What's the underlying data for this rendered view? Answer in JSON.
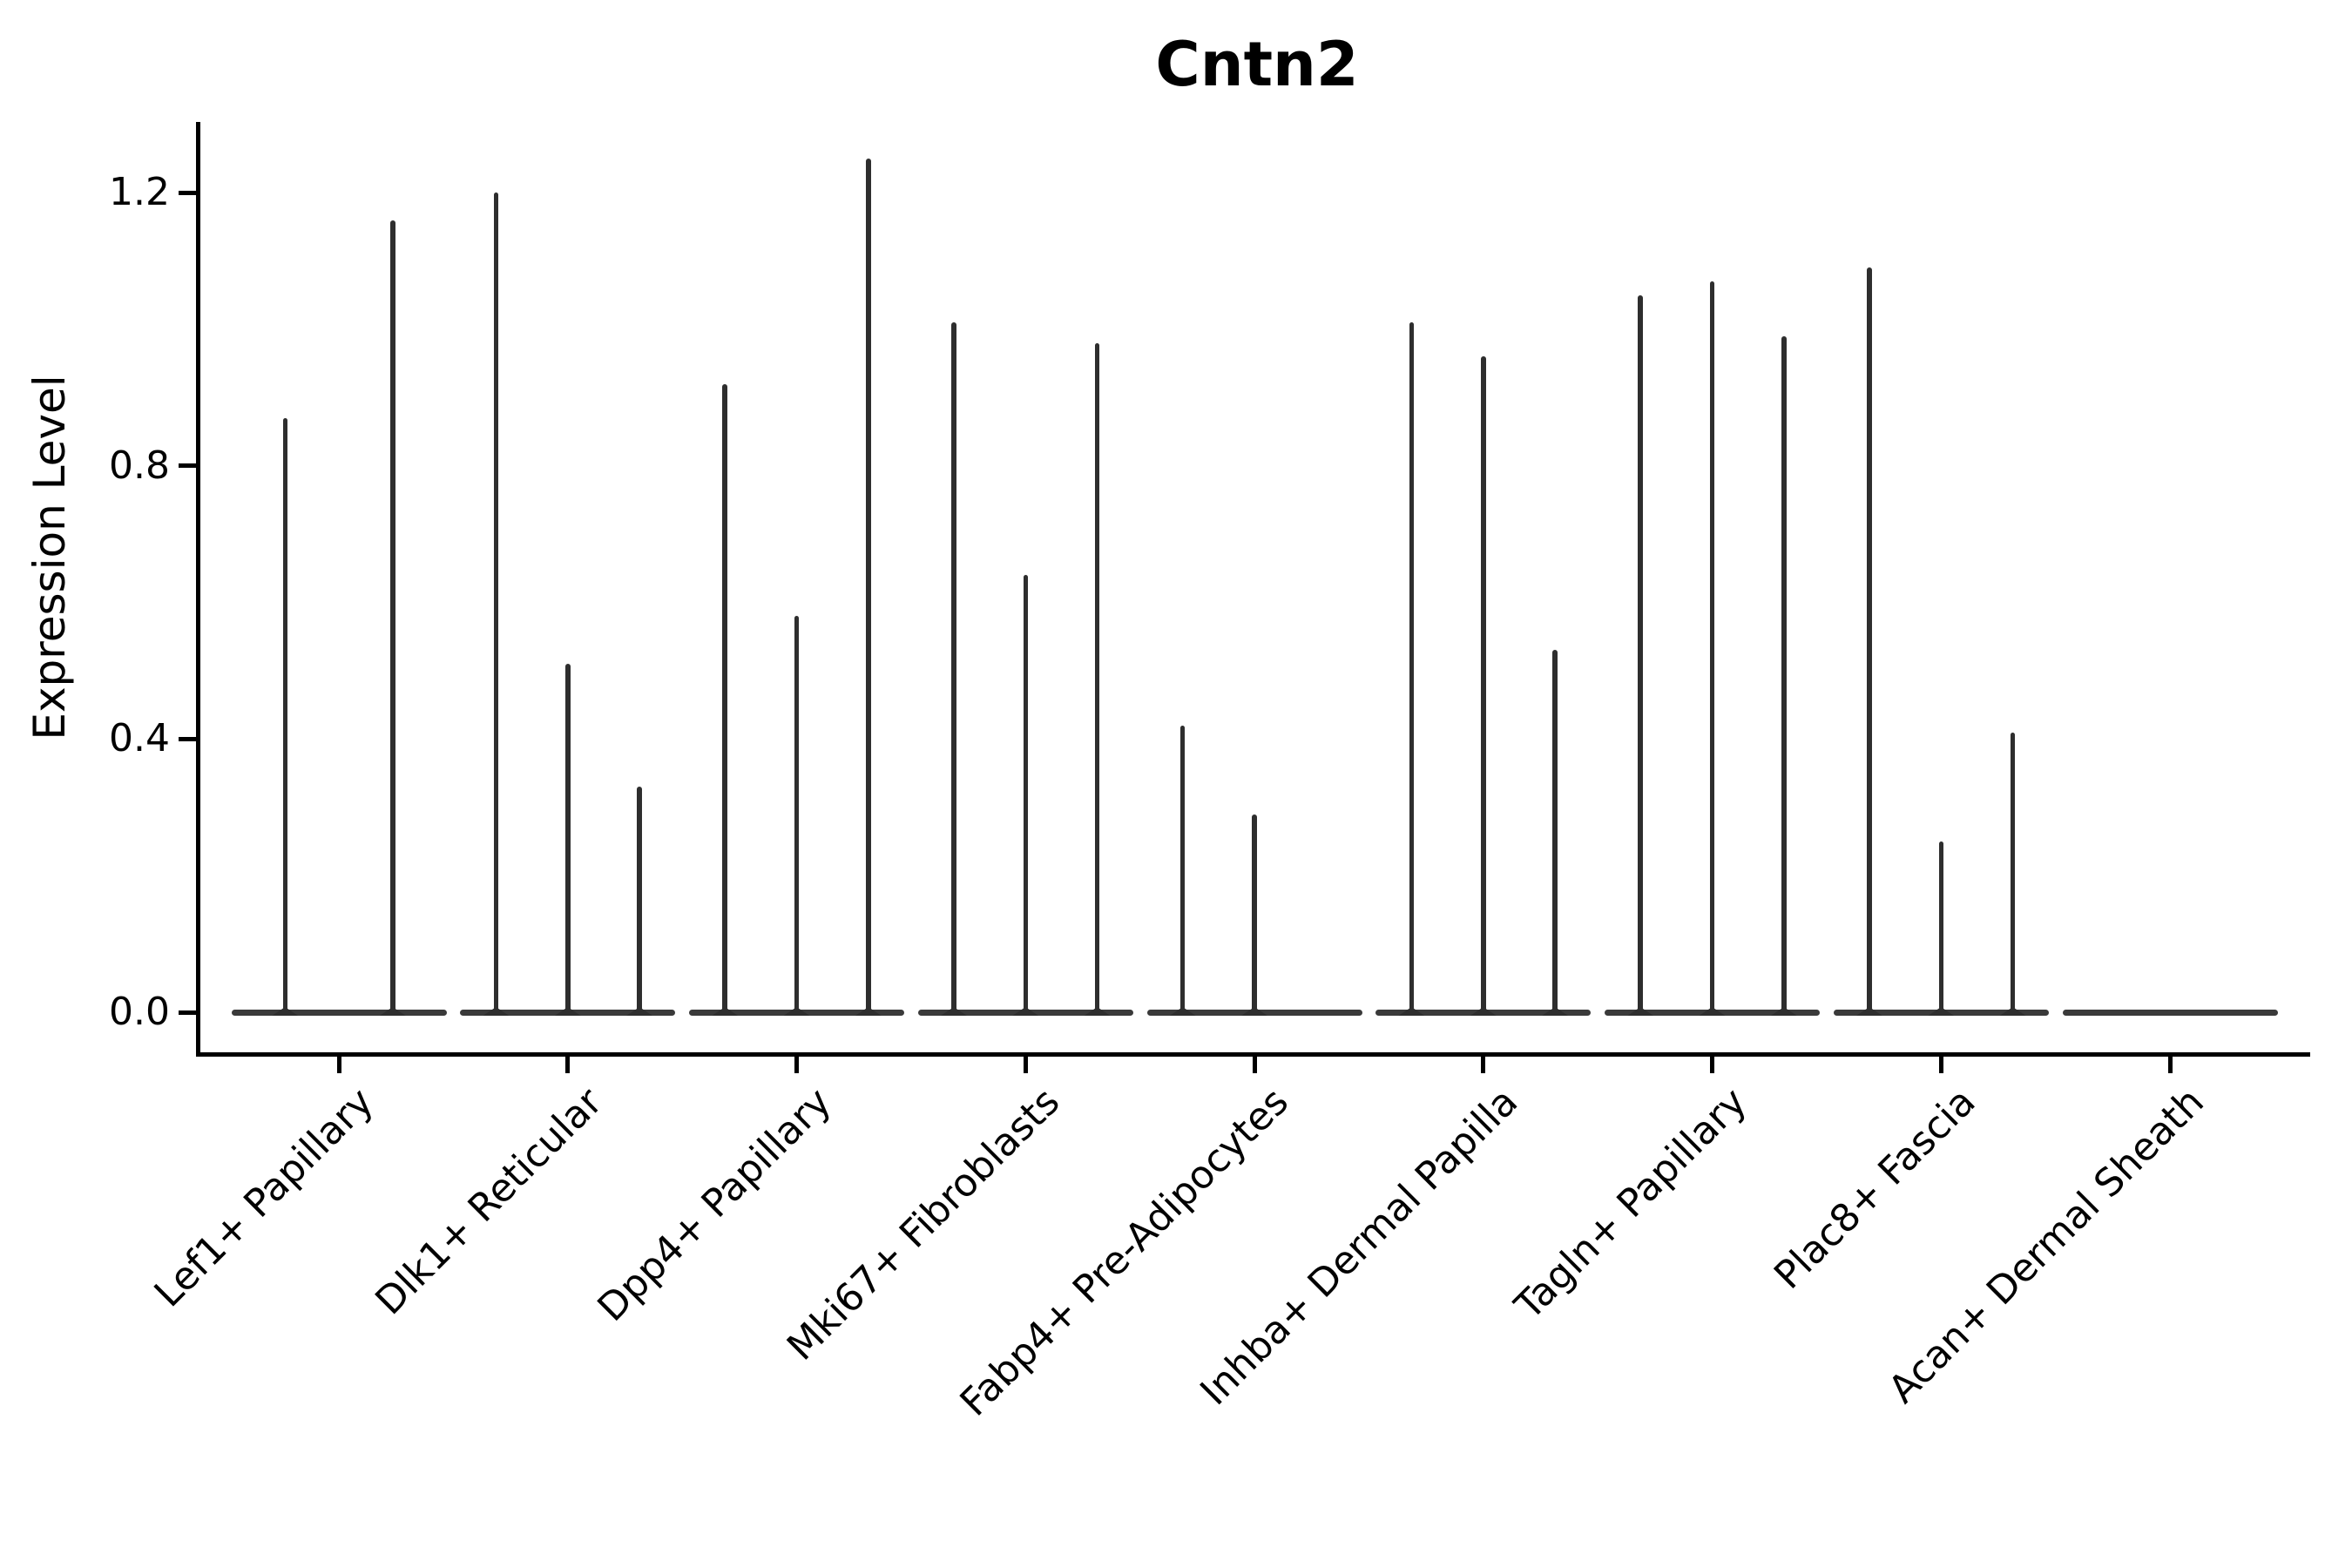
{
  "chart_data": {
    "type": "violin",
    "title": "Cntn2",
    "ylabel": "Expression Level",
    "xlabel": "",
    "legend": null,
    "grid": false,
    "ylim": [
      -0.06,
      1.3
    ],
    "yticks": [
      {
        "label": "0.0",
        "value": 0.0
      },
      {
        "label": "0.4",
        "value": 0.4
      },
      {
        "label": "0.8",
        "value": 0.8
      },
      {
        "label": "1.2",
        "value": 1.2
      }
    ],
    "categories": [
      "Lef1+ Papillary",
      "Dlk1+ Reticular",
      "Dpp4+ Papillary",
      "Mki67+ Fibroblasts",
      "Fabp4+ Pre-Adipocytes",
      "Inhba+ Dermal Papilla",
      "Tagln+ Papillary",
      "Plac8+ Fascia",
      "Acan+ Dermal Sheath"
    ],
    "groups": [
      {
        "category": "Lef1+ Papillary",
        "violin_max_expression": [
          0.87,
          1.16
        ]
      },
      {
        "category": "Dlk1+ Reticular",
        "violin_max_expression": [
          1.2,
          0.51,
          0.33
        ]
      },
      {
        "category": "Dpp4+ Papillary",
        "violin_max_expression": [
          0.92,
          0.58,
          1.25
        ]
      },
      {
        "category": "Mki67+ Fibroblasts",
        "violin_max_expression": [
          1.01,
          0.64,
          0.98
        ]
      },
      {
        "category": "Fabp4+ Pre-Adipocytes",
        "violin_max_expression": [
          0.42,
          0.29,
          0.0
        ]
      },
      {
        "category": "Inhba+ Dermal Papilla",
        "violin_max_expression": [
          1.01,
          0.96,
          0.53
        ]
      },
      {
        "category": "Tagln+ Papillary",
        "violin_max_expression": [
          1.05,
          1.07,
          0.99
        ]
      },
      {
        "category": "Plac8+ Fascia",
        "violin_max_expression": [
          1.09,
          0.25,
          0.41
        ]
      },
      {
        "category": "Acan+ Dermal Sheath",
        "violin_max_expression": [
          0.0,
          0.0,
          0.0
        ]
      }
    ],
    "colors": {
      "violin": "#2e2e2e",
      "baseline": "#3a3a3a",
      "axis": "#000000",
      "text": "#000000",
      "background": "#ffffff"
    }
  }
}
